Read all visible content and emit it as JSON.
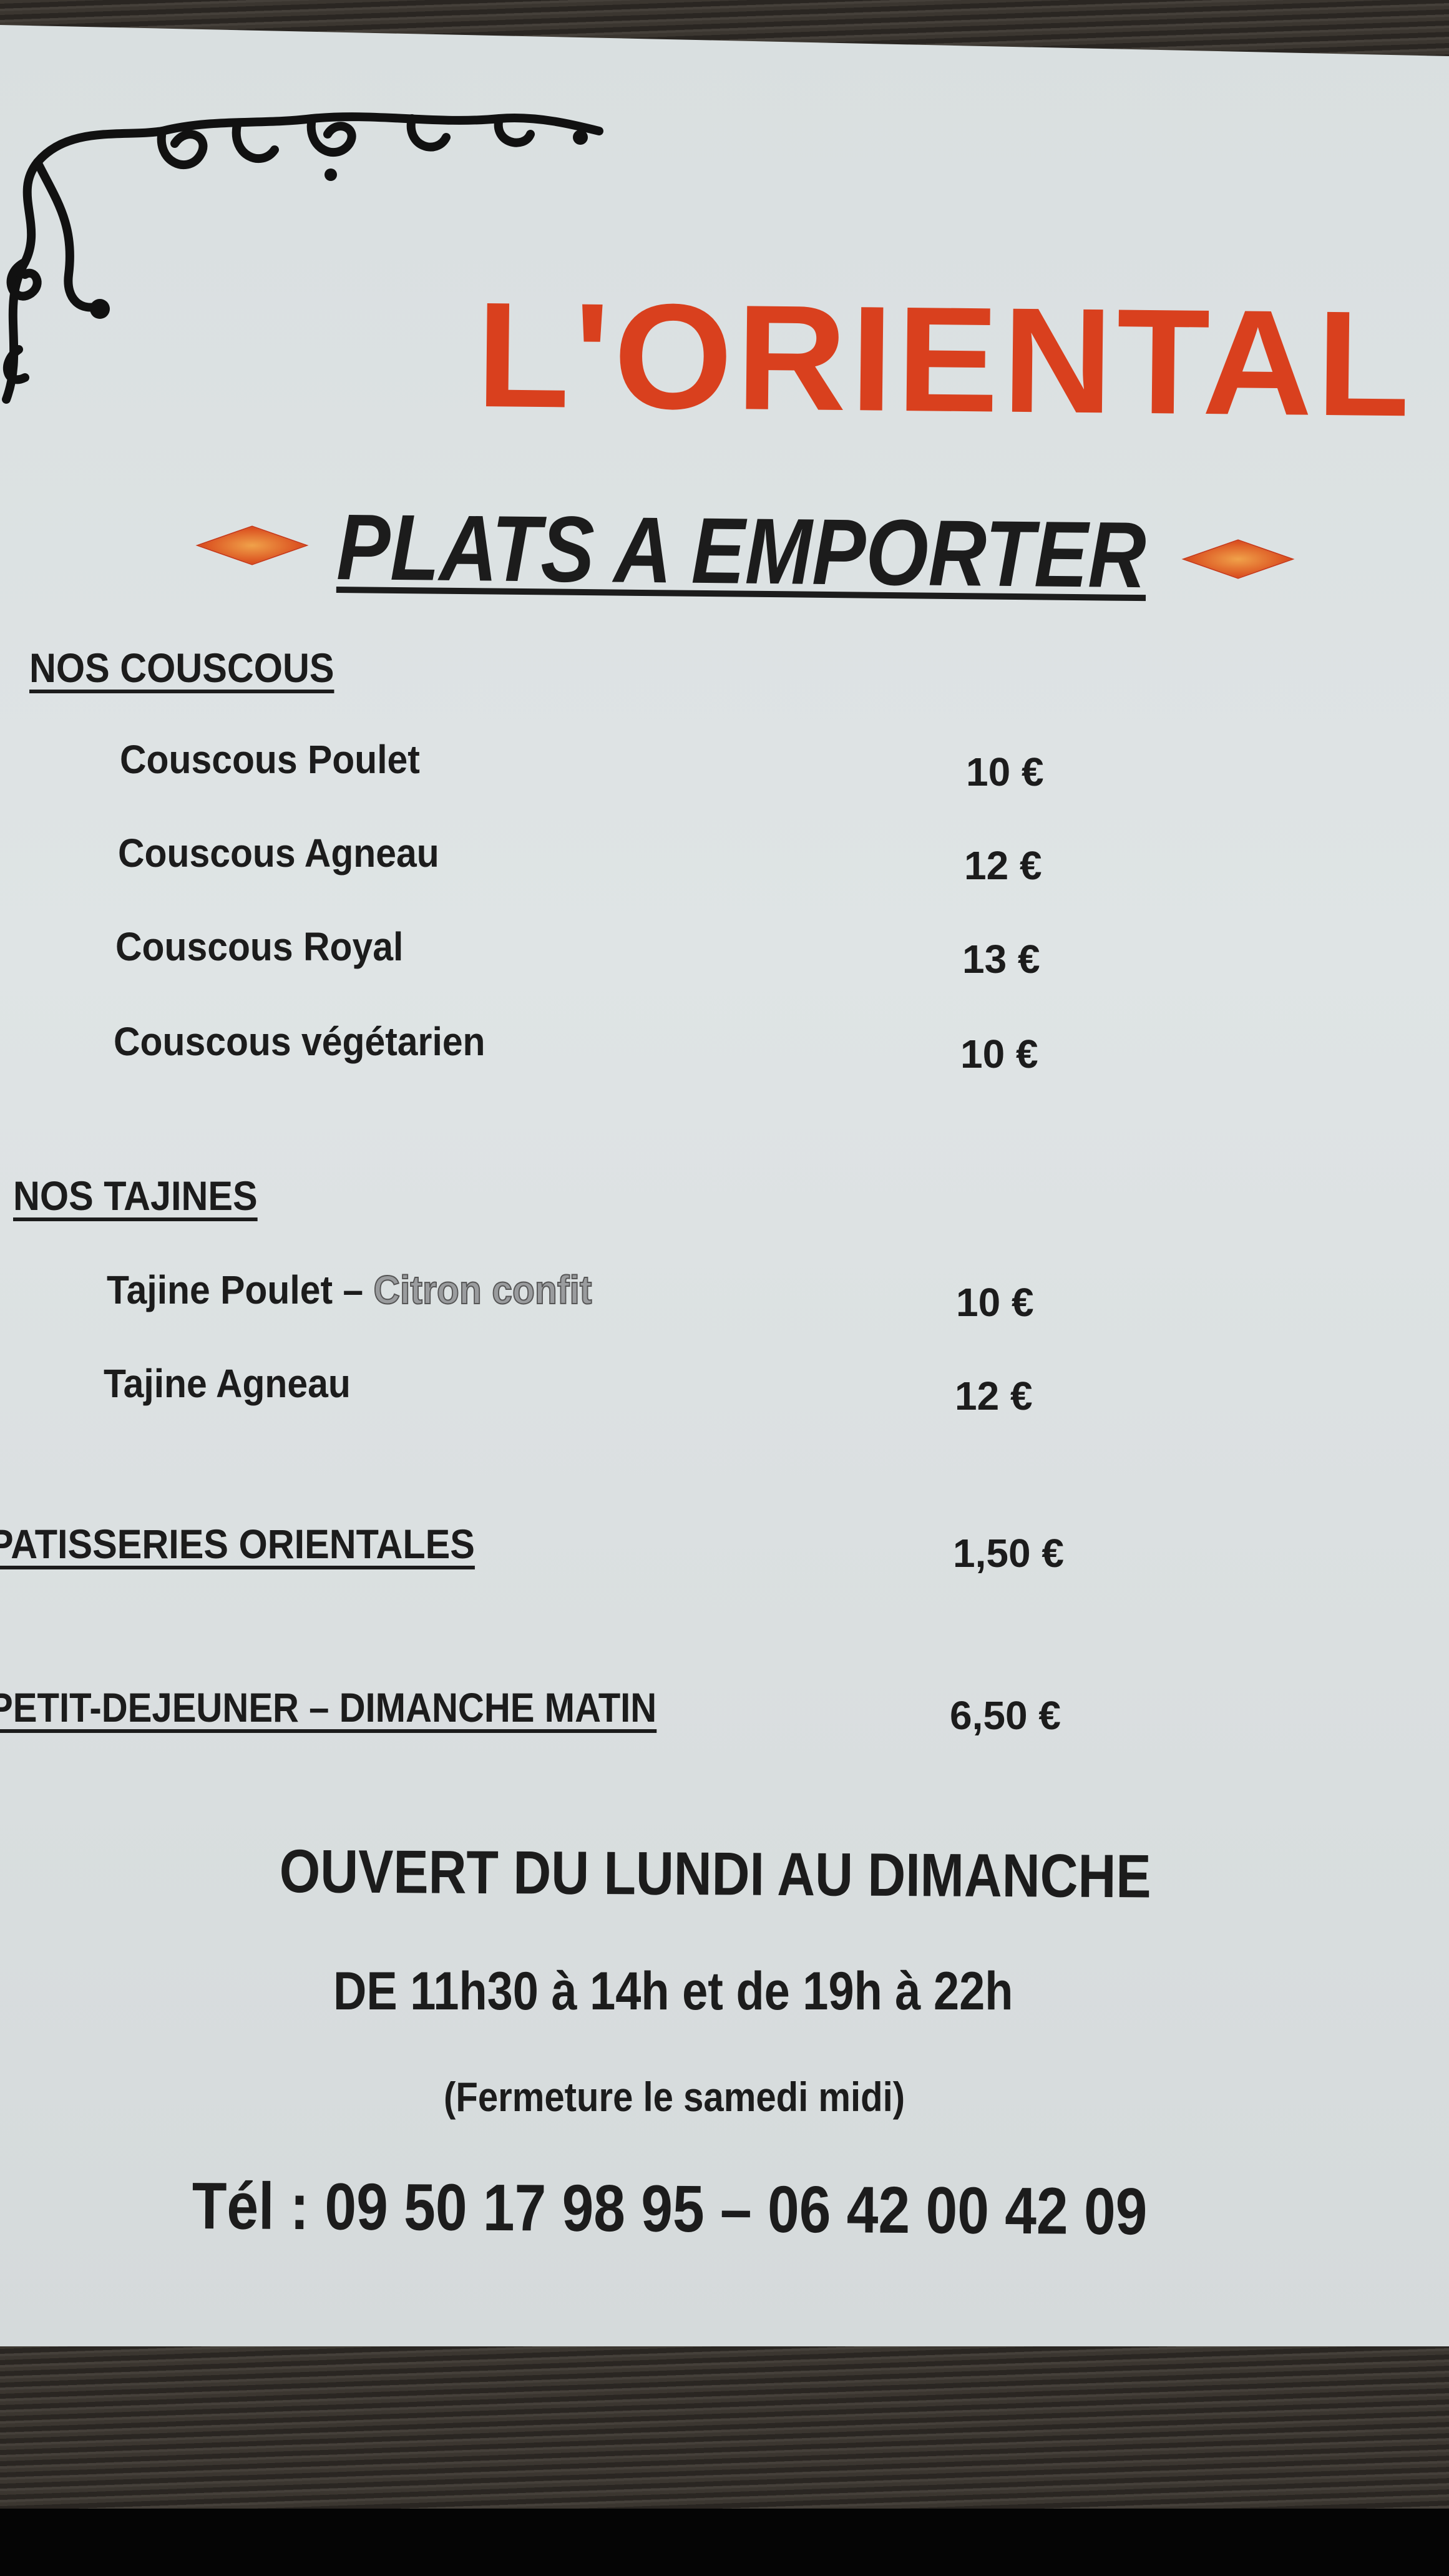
{
  "menu": {
    "restaurant_name": "L'ORIENTAL",
    "subtitle": "PLATS A EMPORTER",
    "sections": {
      "couscous": {
        "heading": "NOS COUSCOUS",
        "items": [
          {
            "name": "Couscous Poulet",
            "price": "10 €"
          },
          {
            "name": "Couscous Agneau",
            "price": "12 €"
          },
          {
            "name": "Couscous Royal",
            "price": "13 €"
          },
          {
            "name": "Couscous végétarien",
            "price": "10 €"
          }
        ]
      },
      "tajines": {
        "heading": "NOS TAJINES",
        "items": [
          {
            "name": "Tajine Poulet – ",
            "name_suffix": "Citron confit",
            "price": "10 €"
          },
          {
            "name": "Tajine Agneau",
            "price": "12 €"
          }
        ]
      },
      "patisseries": {
        "heading": "PATISSERIES ORIENTALES",
        "price": "1,50 €"
      },
      "petit_dejeuner": {
        "heading": "PETIT-DEJEUNER – DIMANCHE MATIN",
        "price": "6,50 €"
      }
    },
    "footer": {
      "opening": "OUVERT DU LUNDI AU DIMANCHE",
      "hours": "DE 11h30 à 14h et de 19h à 22h",
      "closure": "(Fermeture le samedi midi)",
      "phone": "Tél : 09 50 17 98 95 – 06 42 00 42 09"
    },
    "colors": {
      "title": "#d9401e",
      "text": "#1c1c1c",
      "paper": "#dfe4e5"
    }
  }
}
